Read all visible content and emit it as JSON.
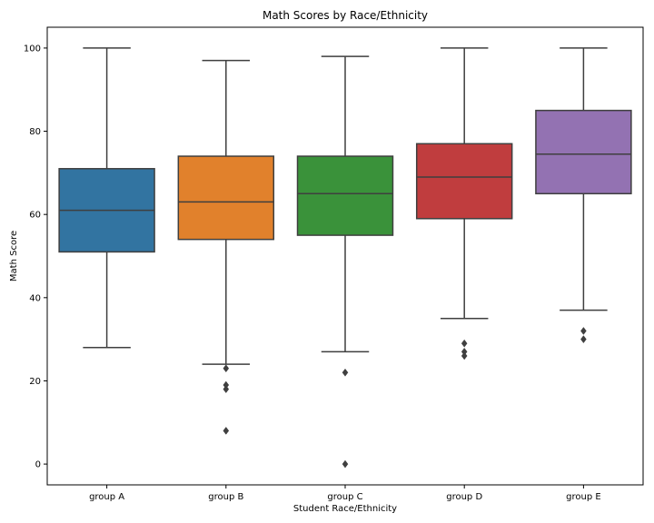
{
  "chart_data": {
    "type": "box",
    "title": "Math Scores by Race/Ethnicity",
    "xlabel": "Student Race/Ethnicity",
    "ylabel": "Math Score",
    "ylim": [
      -5,
      105
    ],
    "yticks": [
      0,
      20,
      40,
      60,
      80,
      100
    ],
    "grid": false,
    "categories": [
      "group A",
      "group B",
      "group C",
      "group D",
      "group E"
    ],
    "colors": [
      "#3274a1",
      "#e1812c",
      "#3a923a",
      "#c03d3e",
      "#9372b2"
    ],
    "boxes": [
      {
        "category": "group A",
        "whisker_low": 28,
        "q1": 51,
        "median": 61,
        "q3": 71,
        "whisker_high": 100,
        "outliers": []
      },
      {
        "category": "group B",
        "whisker_low": 24,
        "q1": 54,
        "median": 63,
        "q3": 74,
        "whisker_high": 97,
        "outliers": [
          23,
          19,
          18,
          8
        ]
      },
      {
        "category": "group C",
        "whisker_low": 27,
        "q1": 55,
        "median": 65,
        "q3": 74,
        "whisker_high": 98,
        "outliers": [
          22,
          0
        ]
      },
      {
        "category": "group D",
        "whisker_low": 35,
        "q1": 59,
        "median": 69,
        "q3": 77,
        "whisker_high": 100,
        "outliers": [
          29,
          27,
          26
        ]
      },
      {
        "category": "group E",
        "whisker_low": 37,
        "q1": 65,
        "median": 74.5,
        "q3": 85,
        "whisker_high": 100,
        "outliers": [
          32,
          30
        ]
      }
    ]
  }
}
